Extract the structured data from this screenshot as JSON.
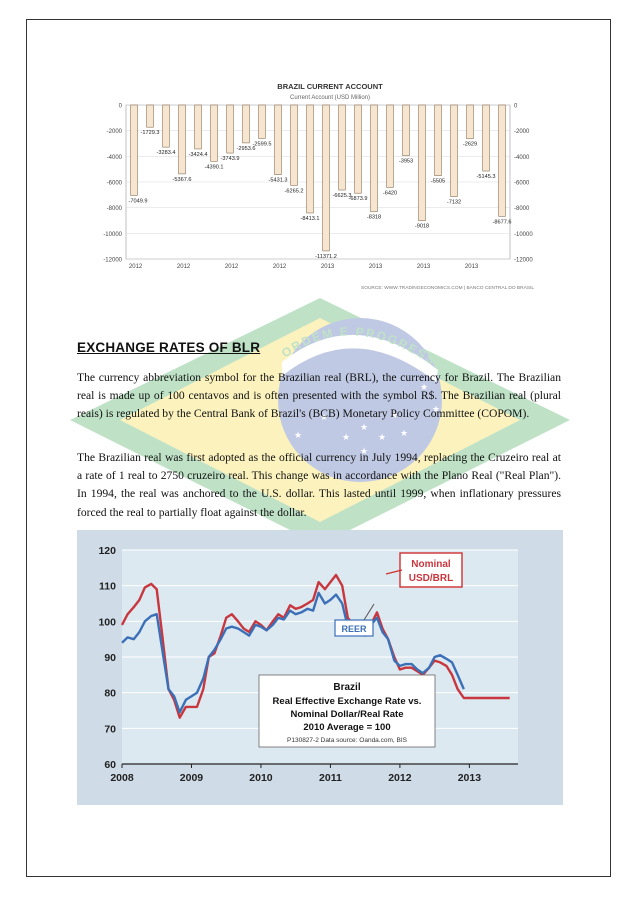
{
  "chart1": {
    "title": "BRAZIL CURRENT ACCOUNT",
    "subtitle": "Current Account (USD Million)",
    "source": "SOURCE: WWW.TRADINGECONOMICS.COM | BANCO CENTRAL DO BRASIL",
    "colors": {
      "bar_fill": "#f6e6cf",
      "bar_stroke": "#8a7256",
      "grid": "#d9d9d9",
      "label": "#222"
    }
  },
  "document": {
    "heading": "EXCHANGE RATES OF BLR",
    "paragraph1": "The currency abbreviation symbol for the Brazilian real (BRL), the currency for Brazil. The Brazilian real is made up of 100 centavos and is often presented with the symbol R$. The Brazilian real (plural reais) is regulated by the Central Bank of Brazil's (BCB) Monetary Policy Committee (COPOM).",
    "paragraph2": "The Brazilian real was first adopted as the official currency in July 1994, replacing the Cruzeiro real at a rate of 1 real to 2750 cruzeiro real. This change was in accordance with the Plano Real (\"Real Plan\"). In 1994, the real was anchored to the U.S. dollar. This lasted until 1999, when inflationary pressures forced the real to partially float against the dollar."
  },
  "watermark": {
    "banner": "ORDEM E PROGRESSO"
  },
  "chart2": {
    "box_title": "Brazil",
    "box_line1": "Real Effective Exchange Rate vs.",
    "box_line2": "Nominal Dollar/Real Rate",
    "box_line3": "2010 Average = 100",
    "box_source": "P130827-2 Data source: Oanda.com, BIS",
    "callout_nominal": [
      "Nominal",
      "USD/BRL"
    ],
    "callout_reer": "REER",
    "colors": {
      "nominal": "#c8373e",
      "reer": "#3b6fb6",
      "bg": "#dce9f1",
      "frame": "#c9d6e3"
    }
  },
  "chart_data": [
    {
      "type": "bar",
      "title": "BRAZIL CURRENT ACCOUNT",
      "subtitle": "Current Account (USD Million)",
      "xlabel": "",
      "ylabel": "",
      "ylim": [
        -12000,
        0
      ],
      "yticks": [
        0,
        -2000,
        -4000,
        -6000,
        -8000,
        -10000,
        -12000
      ],
      "x_tick_labels": [
        "2012",
        "2012",
        "2012",
        "2012",
        "2013",
        "2013",
        "2013",
        "2013"
      ],
      "grid": true,
      "values": [
        -7049.9,
        -1729.3,
        -3283.4,
        -5367.6,
        -3424.4,
        -4390.1,
        -3743.9,
        -2953.6,
        -2599.5,
        -5431.3,
        -6265.2,
        -8413.1,
        -11371.2,
        -6625.3,
        -6873.9,
        -8318,
        -6420,
        -3953,
        -9018,
        -5505,
        -7132,
        -2629,
        -5145.3,
        -8677.6
      ],
      "data_labels": [
        "-7049.9",
        "-1729.3",
        "-3283.4",
        "-5367.6",
        "-3424.4",
        "-4390.1",
        "-3743.9",
        "-2953.6",
        "-2599.5",
        "-5431.3",
        "-6265.2",
        "-8413.1",
        "-11371.2",
        "-6625.3",
        "-6873.9",
        "-8318",
        "-6420",
        "-3953",
        "-9018",
        "-5505",
        "-7132",
        "-2629",
        "-5145.3",
        "-8677.6"
      ]
    },
    {
      "type": "line",
      "title": "Brazil",
      "xlim": [
        2008,
        2013.7
      ],
      "ylim": [
        60,
        120
      ],
      "xticks": [
        2008,
        2009,
        2010,
        2011,
        2012,
        2013
      ],
      "yticks": [
        60,
        70,
        80,
        90,
        100,
        110,
        120
      ],
      "grid": true,
      "series": [
        {
          "name": "Nominal USD/BRL",
          "x": [
            2008.0,
            2008.08,
            2008.17,
            2008.25,
            2008.33,
            2008.42,
            2008.5,
            2008.58,
            2008.67,
            2008.75,
            2008.83,
            2008.92,
            2009.0,
            2009.08,
            2009.17,
            2009.25,
            2009.33,
            2009.42,
            2009.5,
            2009.58,
            2009.67,
            2009.75,
            2009.83,
            2009.92,
            2010.0,
            2010.08,
            2010.17,
            2010.25,
            2010.33,
            2010.42,
            2010.5,
            2010.58,
            2010.67,
            2010.75,
            2010.83,
            2010.92,
            2011.0,
            2011.08,
            2011.17,
            2011.25,
            2011.33,
            2011.42,
            2011.5,
            2011.58,
            2011.67,
            2011.75,
            2011.83,
            2011.92,
            2012.0,
            2012.08,
            2012.17,
            2012.25,
            2012.33,
            2012.42,
            2012.5,
            2012.58,
            2012.67,
            2012.75,
            2012.83,
            2012.92,
            2013.0,
            2013.08,
            2013.17,
            2013.25,
            2013.33,
            2013.42,
            2013.5,
            2013.58
          ],
          "values": [
            99,
            102,
            104,
            106,
            109.5,
            110.5,
            109,
            96,
            81,
            78,
            73,
            76,
            76,
            76,
            81,
            90,
            91,
            96,
            101,
            102,
            100,
            98,
            97,
            100,
            99,
            97.5,
            100,
            102,
            101,
            104.5,
            103.5,
            104,
            105,
            106,
            111,
            109,
            111,
            113,
            110,
            101,
            99,
            99,
            96,
            99,
            102.5,
            98,
            95,
            90,
            86.5,
            87,
            87,
            86,
            85,
            87,
            89,
            88.5,
            87.5,
            85,
            81,
            78.5,
            78.5,
            78.5,
            78.5,
            78.5,
            78.5,
            78.5,
            78.5,
            78.5
          ]
        },
        {
          "name": "REER",
          "x": [
            2008.0,
            2008.08,
            2008.17,
            2008.25,
            2008.33,
            2008.42,
            2008.5,
            2008.58,
            2008.67,
            2008.75,
            2008.83,
            2008.92,
            2009.0,
            2009.08,
            2009.17,
            2009.25,
            2009.33,
            2009.42,
            2009.5,
            2009.58,
            2009.67,
            2009.75,
            2009.83,
            2009.92,
            2010.0,
            2010.08,
            2010.17,
            2010.25,
            2010.33,
            2010.42,
            2010.5,
            2010.58,
            2010.67,
            2010.75,
            2010.83,
            2010.92,
            2011.0,
            2011.08,
            2011.17,
            2011.25,
            2011.33,
            2011.42,
            2011.5,
            2011.58,
            2011.67,
            2011.75,
            2011.83,
            2011.92,
            2012.0,
            2012.08,
            2012.17,
            2012.25,
            2012.33,
            2012.42,
            2012.5,
            2012.58,
            2012.67,
            2012.75,
            2012.83,
            2012.92
          ],
          "values": [
            94,
            95.5,
            95,
            97,
            100,
            101.5,
            102,
            92,
            81,
            79,
            74.5,
            78,
            79,
            80,
            84,
            90,
            92,
            95,
            98,
            98.5,
            98,
            97,
            96,
            99,
            98.5,
            97.5,
            99,
            101,
            100.5,
            103,
            102,
            102.5,
            103.5,
            103,
            108,
            105,
            106,
            107.5,
            105,
            98.5,
            98,
            98,
            97,
            99,
            101,
            97,
            95,
            89,
            87.5,
            88,
            88,
            86.5,
            85.5,
            87,
            90,
            90.5,
            89.5,
            88.5,
            85,
            81
          ]
        }
      ]
    }
  ]
}
